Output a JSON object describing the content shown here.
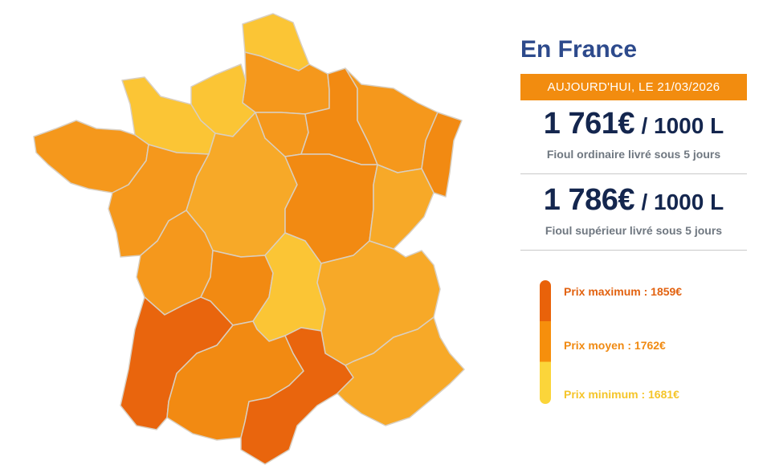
{
  "map": {
    "colors": {
      "max": "#e9650d",
      "high": "#f28a12",
      "mid_high": "#f5981c",
      "mid": "#f7a928",
      "low": "#fbc535",
      "border": "#d9cfc1"
    },
    "regions": [
      {
        "name": "nord",
        "level": "low"
      },
      {
        "name": "picardie",
        "level": "mid_high"
      },
      {
        "name": "haute-normandie",
        "level": "low"
      },
      {
        "name": "basse-normandie",
        "level": "low"
      },
      {
        "name": "bretagne",
        "level": "mid_high"
      },
      {
        "name": "pays-de-la-loire",
        "level": "mid_high"
      },
      {
        "name": "centre",
        "level": "mid"
      },
      {
        "name": "ile-de-france",
        "level": "mid_high"
      },
      {
        "name": "champagne-ardenne",
        "level": "high"
      },
      {
        "name": "lorraine",
        "level": "mid_high"
      },
      {
        "name": "alsace",
        "level": "high"
      },
      {
        "name": "bourgogne",
        "level": "high"
      },
      {
        "name": "franche-comte",
        "level": "mid"
      },
      {
        "name": "poitou-charentes",
        "level": "mid_high"
      },
      {
        "name": "limousin",
        "level": "high"
      },
      {
        "name": "auvergne",
        "level": "low"
      },
      {
        "name": "rhone-alpes",
        "level": "mid"
      },
      {
        "name": "aquitaine",
        "level": "max"
      },
      {
        "name": "midi-pyrenees",
        "level": "high"
      },
      {
        "name": "languedoc-roussillon",
        "level": "max"
      },
      {
        "name": "provence-alpes-cote-d-azur",
        "level": "mid"
      }
    ]
  },
  "panel": {
    "title": "En France",
    "date_label": "AUJOURD'HUI, LE 21/03/2026",
    "ordinary": {
      "price": "1 761€",
      "unit": "/ 1000 L",
      "description": "Fioul ordinaire livré sous 5 jours"
    },
    "superior": {
      "price": "1 786€",
      "unit": "/ 1000 L",
      "description": "Fioul supérieur livré sous 5 jours"
    }
  },
  "legend": {
    "max_label": "Prix maximum : 1859€",
    "avg_label": "Prix moyen : 1762€",
    "min_label": "Prix minimum : 1681€",
    "colors": {
      "max": "#e9620a",
      "avg": "#f68f0c",
      "min": "#fbd53a"
    }
  }
}
